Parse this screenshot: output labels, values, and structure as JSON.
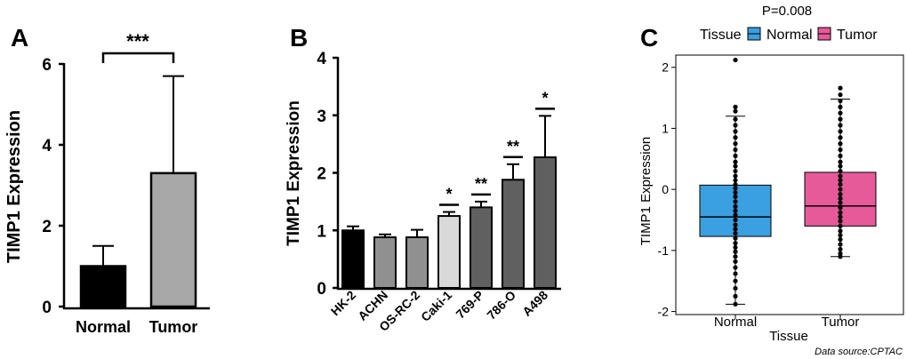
{
  "panels": {
    "A": {
      "label": "A"
    },
    "B": {
      "label": "B"
    },
    "C": {
      "label": "C"
    }
  },
  "source_note": "Data source:CPTAC",
  "colors": {
    "black": "#000000",
    "grey_mid": "#a8a8a8",
    "grey_dark": "#606060",
    "grey_light": "#d9d9d9",
    "grey_acn": "#909090",
    "normal_blue": "#3aa0e0",
    "tumor_pink": "#e65a9a"
  },
  "chart_data": [
    {
      "panel": "A",
      "type": "bar",
      "categories": [
        "Normal",
        "Tumor"
      ],
      "values": [
        1.0,
        3.3
      ],
      "errors": [
        0.5,
        2.4
      ],
      "bar_colors": [
        "#000000",
        "#a8a8a8"
      ],
      "ylabel": "TIMP1 Expression",
      "ylim": [
        0,
        6
      ],
      "yticks": [
        "0",
        "2",
        "4",
        "6"
      ],
      "significance": {
        "label": "***",
        "between": [
          "Normal",
          "Tumor"
        ]
      }
    },
    {
      "panel": "B",
      "type": "bar",
      "categories": [
        "HK-2",
        "ACHN",
        "OS-RC-2",
        "Caki-1",
        "769-P",
        "786-O",
        "A498"
      ],
      "values": [
        1.0,
        0.88,
        0.88,
        1.25,
        1.4,
        1.88,
        2.27
      ],
      "errors": [
        0.07,
        0.05,
        0.13,
        0.07,
        0.1,
        0.27,
        0.72
      ],
      "bar_colors": [
        "#000000",
        "#909090",
        "#909090",
        "#d9d9d9",
        "#606060",
        "#606060",
        "#606060"
      ],
      "significance": [
        "",
        "",
        "",
        "*",
        "**",
        "**",
        "*"
      ],
      "ylabel": "TIMP1 Expression",
      "ylim": [
        0,
        4
      ],
      "yticks": [
        "0",
        "1",
        "2",
        "3",
        "4"
      ]
    },
    {
      "panel": "C",
      "type": "box",
      "title": "P=0.008",
      "legend": {
        "title": "Tissue",
        "position": "top",
        "entries": [
          "Normal",
          "Tumor"
        ]
      },
      "categories": [
        "Normal",
        "Tumor"
      ],
      "xlabel": "Tissue",
      "ylabel": "TIMP1 Expression",
      "ylim": [
        -2.05,
        2.2
      ],
      "yticks": [
        "-2",
        "-1",
        "0",
        "1",
        "2"
      ],
      "boxes": [
        {
          "name": "Normal",
          "min": -1.88,
          "q1": -0.77,
          "median": -0.45,
          "q3": 0.07,
          "max": 1.2,
          "points": [
            2.12,
            1.35,
            1.28,
            1.15,
            1.05,
            0.95,
            0.85,
            0.75,
            0.65,
            0.55,
            0.45,
            0.38,
            0.3,
            0.22,
            0.15,
            0.08,
            0.02,
            -0.05,
            -0.12,
            -0.2,
            -0.28,
            -0.35,
            -0.42,
            -0.5,
            -0.58,
            -0.65,
            -0.72,
            -0.8,
            -0.88,
            -0.95,
            -1.02,
            -1.1,
            -1.18,
            -1.28,
            -1.38,
            -1.5,
            -1.62,
            -1.75,
            -1.88
          ]
        },
        {
          "name": "Tumor",
          "min": -1.1,
          "q1": -0.6,
          "median": -0.27,
          "q3": 0.28,
          "max": 1.48,
          "points": [
            1.66,
            1.55,
            1.45,
            1.35,
            1.25,
            1.15,
            1.05,
            0.95,
            0.85,
            0.75,
            0.65,
            0.55,
            0.45,
            0.38,
            0.3,
            0.22,
            0.15,
            0.08,
            0.0,
            -0.08,
            -0.15,
            -0.22,
            -0.3,
            -0.38,
            -0.45,
            -0.52,
            -0.6,
            -0.68,
            -0.75,
            -0.82,
            -0.9,
            -0.98,
            -1.05,
            -1.1
          ]
        }
      ]
    }
  ]
}
